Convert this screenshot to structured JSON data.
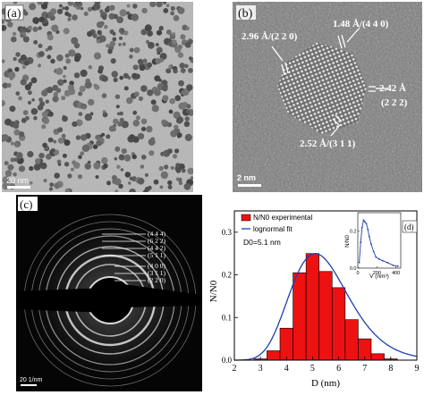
{
  "panel_a": {
    "tag": "(a)",
    "scale_label": "20 nm"
  },
  "panel_b": {
    "tag": "(b)",
    "scale_label": "2 nm",
    "annotations": [
      "2.96 Å/(2 2 0)",
      "1.48 Å/(4 4 0)",
      "2.42 Å",
      "(2 2 2)",
      "2.52 Å/(3 1 1)"
    ]
  },
  "panel_c": {
    "tag": "(c)",
    "scale_label": "20 1/nm",
    "ring_labels": [
      "(4 4 4)",
      "(6 2 2)",
      "(4 4 2)",
      "(5 1 1)",
      "(4 0 0)",
      "(3 1 1)",
      "(2 2 0)"
    ]
  },
  "chart_data": {
    "type": "bar",
    "panel_tag": "(d)",
    "x": [
      3,
      3.5,
      4,
      4.5,
      5,
      5.5,
      6,
      6.5,
      7,
      7.5,
      8
    ],
    "values": [
      0.003,
      0.022,
      0.075,
      0.205,
      0.25,
      0.208,
      0.17,
      0.095,
      0.05,
      0.015,
      0.003
    ],
    "bar_width": 0.5,
    "xlabel": "D (nm)",
    "ylabel": "N/N0",
    "xlim": [
      2,
      9
    ],
    "ylim": [
      0,
      0.35
    ],
    "xticks": [
      2,
      3,
      4,
      5,
      6,
      7,
      8,
      9
    ],
    "yticks": [
      0.0,
      0.1,
      0.2,
      0.3
    ],
    "legend": [
      "N/N0 experimental",
      "lognormal fit"
    ],
    "legend_position": "top-left",
    "annotation": "D0=5.1 nm",
    "fit": {
      "name": "lognormal fit",
      "D0": 5.1,
      "sigma": 0.22,
      "peak": 0.25
    },
    "colors": {
      "bars": "#ee1111",
      "fit": "#1f3fb0"
    },
    "inset": {
      "type": "line",
      "xlabel": "V (nm³)",
      "ylabel": "N/N0",
      "xlim": [
        0,
        450
      ],
      "ylim": [
        0,
        0.3
      ],
      "xticks": [
        0,
        200,
        400
      ],
      "yticks": [
        0.0,
        0.2
      ],
      "x": [
        15,
        30,
        45,
        60,
        75,
        90,
        105,
        120,
        140,
        165,
        190,
        220,
        260,
        310,
        370,
        420
      ],
      "y": [
        0.03,
        0.14,
        0.22,
        0.26,
        0.25,
        0.24,
        0.21,
        0.17,
        0.13,
        0.09,
        0.06,
        0.05,
        0.04,
        0.03,
        0.015,
        0.01
      ]
    }
  }
}
